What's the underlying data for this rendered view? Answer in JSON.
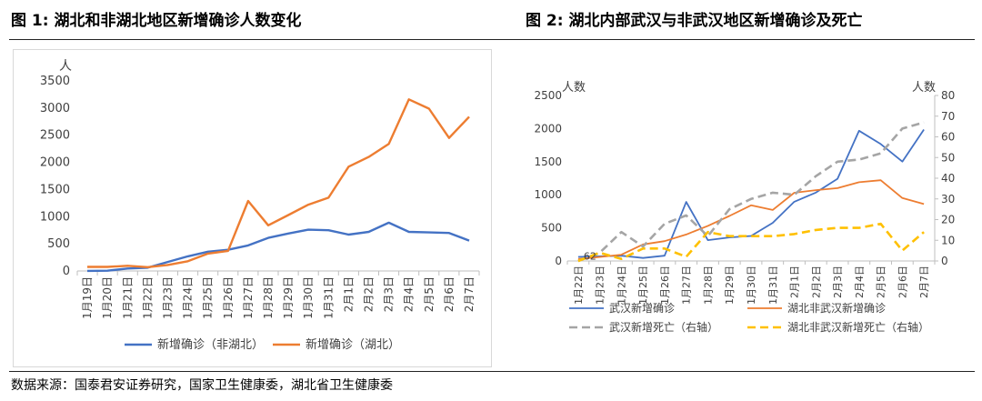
{
  "header": {
    "figure1_title": "图  1:  湖北和非湖北地区新增确诊人数变化",
    "figure2_title": "图  2:  湖北内部武汉与非武汉地区新增确诊及死亡"
  },
  "footer": {
    "source": "数据来源：国泰君安证券研究，国家卫生健康委，湖北省卫生健康委"
  },
  "colors": {
    "blue": "#4472c4",
    "orange": "#ed7d31",
    "gray": "#a5a5a5",
    "yellow": "#ffc000",
    "axis": "#bfbfbf",
    "text": "#404040"
  },
  "chart_data": [
    {
      "type": "line",
      "title": "图 1: 湖北和非湖北地区新增确诊人数变化",
      "ylabel": "人",
      "ylim": [
        0,
        3500
      ],
      "yticks": [
        0,
        500,
        1000,
        1500,
        2000,
        2500,
        3000,
        3500
      ],
      "ytick_labels": [
        "0",
        "500",
        "1000",
        "1500",
        "2000",
        "2500",
        "3000",
        "3500"
      ],
      "categories": [
        "1月19日",
        "1月20日",
        "1月21日",
        "1月22日",
        "1月23日",
        "1月24日",
        "1月25日",
        "1月26日",
        "1月27日",
        "1月28日",
        "1月29日",
        "1月30日",
        "1月31日",
        "2月1日",
        "2月2日",
        "2月3日",
        "2月4日",
        "2月5日",
        "2月6日",
        "2月7日"
      ],
      "series": [
        {
          "name": "新增确诊（非湖北）",
          "color": "#4472c4",
          "values": [
            2,
            5,
            45,
            60,
            165,
            270,
            355,
            390,
            470,
            610,
            690,
            760,
            750,
            670,
            720,
            890,
            720,
            710,
            700,
            560
          ]
        },
        {
          "name": "新增确诊（湖北）",
          "color": "#ed7d31",
          "values": [
            75,
            75,
            95,
            70,
            110,
            180,
            320,
            370,
            1290,
            840,
            1030,
            1220,
            1350,
            1920,
            2100,
            2340,
            3160,
            2990,
            2450,
            2840
          ]
        }
      ]
    },
    {
      "type": "line",
      "title": "图 2: 湖北内部武汉与非武汉地区新增确诊及死亡",
      "ylabel_left": "人数",
      "ylabel_right": "人数",
      "ylim_left": [
        0,
        2500
      ],
      "ylim_right": [
        0,
        80
      ],
      "yticks_left": [
        0,
        500,
        1000,
        1500,
        2000,
        2500
      ],
      "ytick_labels_left": [
        "0",
        "500",
        "1000",
        "1500",
        "2000",
        "2500"
      ],
      "yticks_right": [
        0,
        10,
        20,
        30,
        40,
        50,
        60,
        70,
        80
      ],
      "ytick_labels_right": [
        "0",
        "10",
        "20",
        "30",
        "40",
        "50",
        "60",
        "70",
        "80"
      ],
      "categories": [
        "1月22日",
        "1月23日",
        "1月24日",
        "1月25日",
        "1月26日",
        "1月27日",
        "1月28日",
        "1月29日",
        "1月30日",
        "1月31日",
        "2月1日",
        "2月2日",
        "2月3日",
        "2月4日",
        "2月5日",
        "2月6日",
        "2月7日"
      ],
      "annotation": {
        "text": "62",
        "category_index": 0
      },
      "series": [
        {
          "name": "武汉新增确诊",
          "axis": "left",
          "color": "#4472c4",
          "style": "solid",
          "values": [
            62,
            70,
            80,
            46,
            80,
            892,
            315,
            356,
            378,
            576,
            894,
            1033,
            1242,
            1967,
            1766,
            1501,
            1985
          ]
        },
        {
          "name": "湖北非武汉新增确诊",
          "axis": "left",
          "color": "#ed7d31",
          "style": "solid",
          "values": [
            30,
            60,
            95,
            250,
            300,
            400,
            530,
            680,
            840,
            770,
            1030,
            1070,
            1100,
            1190,
            1220,
            950,
            860
          ]
        },
        {
          "name": "武汉新增死亡（右轴）",
          "axis": "right",
          "color": "#a5a5a5",
          "style": "dashed",
          "values": [
            0,
            4,
            14,
            7,
            18,
            22,
            12,
            25,
            30,
            33,
            32,
            41,
            48,
            49,
            52,
            64,
            67
          ]
        },
        {
          "name": "湖北非武汉新增死亡（右轴）",
          "axis": "right",
          "color": "#ffc000",
          "style": "dashed",
          "values": [
            0,
            4,
            1,
            6,
            6,
            2,
            14,
            12,
            12,
            12,
            13,
            15,
            16,
            16,
            18,
            5,
            14
          ]
        }
      ]
    }
  ]
}
